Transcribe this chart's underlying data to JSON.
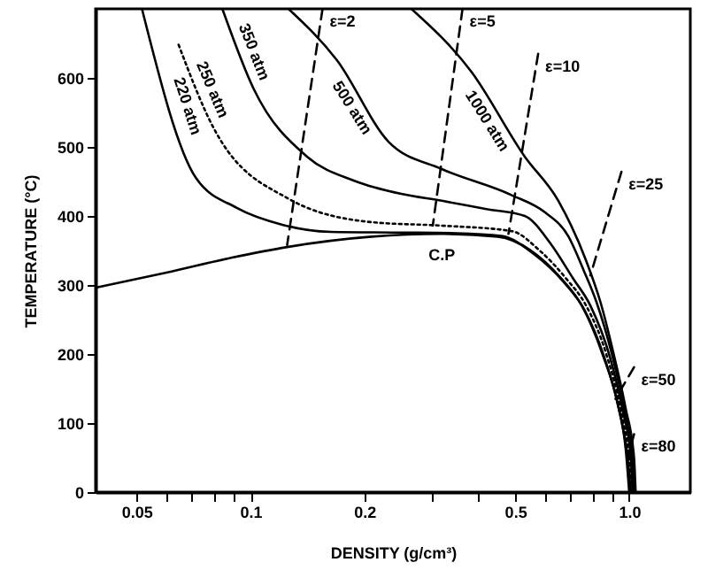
{
  "chart_data": {
    "type": "line",
    "xlabel": "DENSITY (g/cm³)",
    "ylabel": "TEMPERATURE (°C)",
    "log": "x",
    "xlim": [
      0.039,
      1.45
    ],
    "ylim": [
      0,
      700
    ],
    "xticks": [
      0.05,
      {
        "value": 0.06,
        "label": null
      },
      {
        "value": 0.07,
        "label": null
      },
      {
        "value": 0.08,
        "label": null
      },
      {
        "value": 0.09,
        "label": null
      },
      0.1,
      0.2,
      {
        "value": 0.3,
        "label": null
      },
      {
        "value": 0.4,
        "label": null
      },
      0.5,
      {
        "value": 0.6,
        "label": null
      },
      {
        "value": 0.7,
        "label": null
      },
      {
        "value": 0.8,
        "label": null
      },
      {
        "value": 0.9,
        "label": null
      },
      {
        "value": 1,
        "label": "1.0"
      }
    ],
    "yticks": [
      0,
      100,
      200,
      300,
      400,
      500,
      600
    ],
    "series": [
      {
        "color": "#000000",
        "line_style": "solid",
        "x": [
          0.039,
          0.06,
          0.09,
          0.125,
          0.209,
          0.32,
          0.45,
          0.55,
          0.66,
          0.75,
          0.85,
          0.93,
          0.98,
          1.0
        ],
        "values": [
          296,
          318,
          340,
          355,
          370,
          374,
          370,
          350,
          310,
          270,
          200,
          130,
          60,
          0
        ]
      },
      {
        "name": "220 atm",
        "color": "#000000",
        "line_style": "solid",
        "x": [
          0.0517,
          0.0718,
          0.0918,
          0.122,
          0.163,
          0.25,
          0.35,
          0.46,
          0.56,
          0.67,
          0.76,
          0.86,
          0.94,
          0.99,
          1.01
        ],
        "values": [
          700,
          455,
          412,
          387,
          377,
          376,
          375,
          371,
          345,
          305,
          265,
          195,
          120,
          50,
          0
        ]
      },
      {
        "name": "250 atm",
        "color": "#000000",
        "line_style": "dotted",
        "x": [
          0.0646,
          0.08,
          0.126,
          0.209,
          0.32,
          0.49,
          0.58,
          0.68,
          0.77,
          0.87,
          0.95,
          1.0,
          1.02
        ],
        "values": [
          648,
          527,
          425,
          391,
          386,
          378,
          350,
          310,
          270,
          200,
          120,
          50,
          0
        ]
      },
      {
        "name": "350 atm",
        "color": "#000000",
        "line_style": "solid",
        "x": [
          0.0843,
          0.102,
          0.141,
          0.188,
          0.25,
          0.32,
          0.42,
          0.53,
          0.62,
          0.71,
          0.79,
          0.89,
          0.96,
          1.01,
          1.02
        ],
        "values": [
          700,
          584,
          486,
          451,
          432,
          422,
          410,
          400,
          360,
          310,
          270,
          195,
          120,
          50,
          0
        ]
      },
      {
        "name": "500 atm",
        "color": "#000000",
        "line_style": "solid",
        "x": [
          0.126,
          0.169,
          0.232,
          0.32,
          0.49,
          0.6,
          0.69,
          0.76,
          0.82,
          0.9,
          0.97,
          1.02,
          1.03
        ],
        "values": [
          700,
          626,
          507,
          468,
          430,
          405,
          371,
          320,
          275,
          200,
          120,
          50,
          0
        ]
      },
      {
        "name": "1000 atm",
        "color": "#000000",
        "line_style": "solid",
        "x": [
          0.266,
          0.383,
          0.53,
          0.65,
          0.77,
          0.84,
          0.91,
          0.98,
          1.03,
          1.04
        ],
        "values": [
          700,
          609,
          486,
          422,
          335,
          275,
          200,
          120,
          50,
          0
        ]
      },
      {
        "name": "ε=2",
        "color": "#000000",
        "line_style": "dashed",
        "x": [
          0.155,
          0.125
        ],
        "values": [
          700,
          358
        ]
      },
      {
        "name": "ε=5",
        "color": "#000000",
        "line_style": "dashed",
        "x": [
          0.363,
          0.303
        ],
        "values": [
          700,
          386
        ]
      },
      {
        "name": "ε=10",
        "color": "#000000",
        "line_style": "dashed",
        "x": [
          0.575,
          0.48
        ],
        "values": [
          635,
          374
        ]
      },
      {
        "name": "ε=25",
        "color": "#000000",
        "line_style": "dashed",
        "x": [
          0.954,
          0.79
        ],
        "values": [
          464,
          314
        ]
      },
      {
        "name": "ε=50",
        "color": "#000000",
        "line_style": "dashed",
        "x": [
          1.03,
          0.92
        ],
        "values": [
          181,
          135
        ]
      },
      {
        "name": "ε=80",
        "color": "#000000",
        "line_style": "dashed",
        "x": [
          1.03,
          0.98
        ],
        "values": [
          84,
          37
        ]
      }
    ],
    "annotations": [
      {
        "text": "C.P",
        "x": 0.32,
        "y": 374
      }
    ]
  }
}
